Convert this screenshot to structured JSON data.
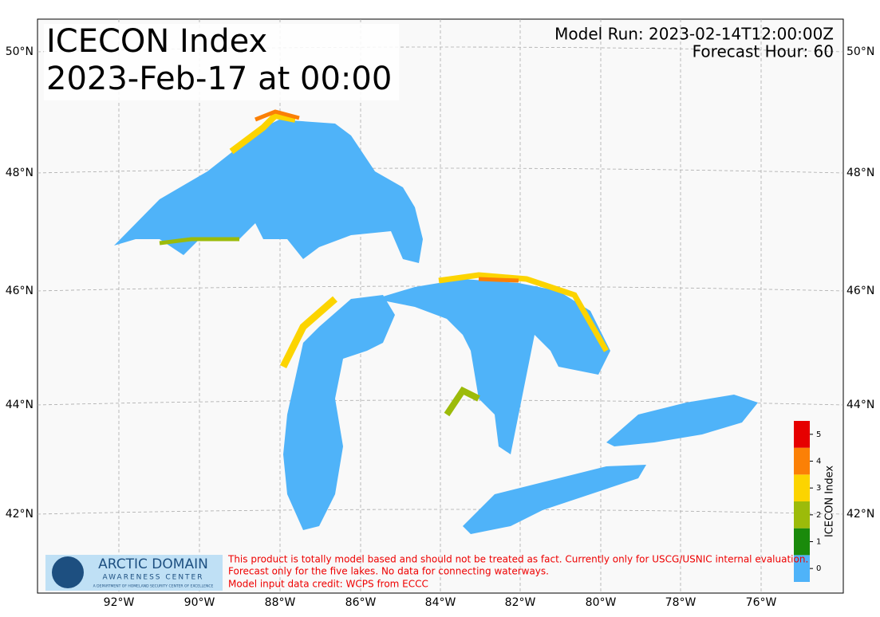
{
  "header": {
    "title_line1": "ICECON Index",
    "title_line2": "2023-Feb-17 at 00:00",
    "model_run": "Model Run: 2023-02-14T12:00:00Z",
    "forecast_hour": "Forecast Hour: 60"
  },
  "axes": {
    "lon_labels": [
      "92°W",
      "90°W",
      "88°W",
      "86°W",
      "84°W",
      "82°W",
      "80°W",
      "78°W",
      "76°W"
    ],
    "lat_labels": [
      "50°N",
      "48°N",
      "46°N",
      "44°N",
      "42°N"
    ]
  },
  "colorbar": {
    "label": "ICECON Index",
    "levels": [
      0,
      1,
      2,
      3,
      4,
      5
    ],
    "colors": [
      "#4fb3f9",
      "#1a8a0b",
      "#9cbb0a",
      "#fcd400",
      "#fb8006",
      "#e60000"
    ]
  },
  "logo": {
    "line1": "ARCTIC DOMAIN",
    "line2": "AWARENESS CENTER",
    "line3": "A DEPARTMENT OF HOMELAND SECURITY CENTER OF EXCELLENCE"
  },
  "disclaimer": [
    "This product is totally model based and should not be treated as fact. Currently only for USCG/USNIC internal evaluation.",
    "Forecast only for the five lakes. No data for connecting waterways.",
    "Model input data credit: WCPS from ECCC"
  ]
}
